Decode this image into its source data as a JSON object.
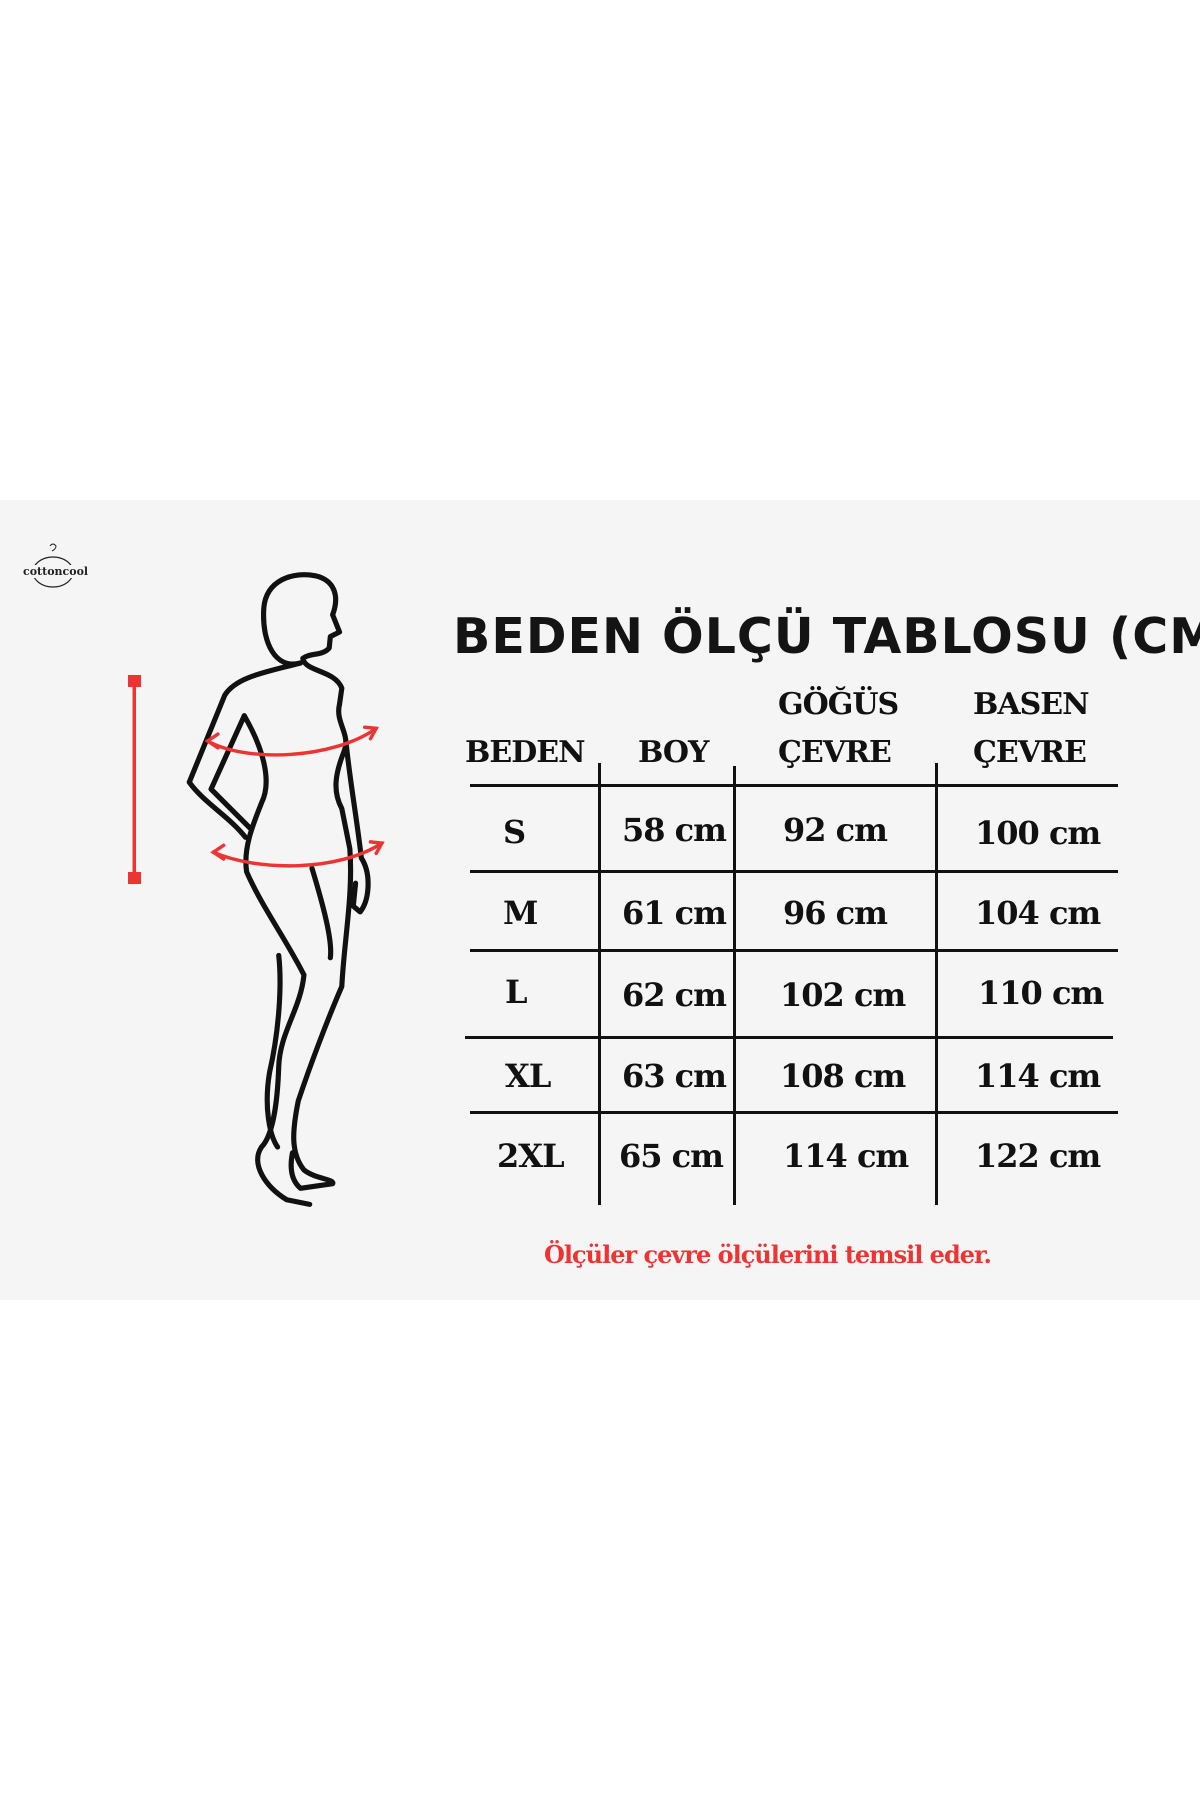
{
  "brand": {
    "logo_text": "cottoncool"
  },
  "title": "BEDEN ÖLÇÜ TABLOSU (CM)",
  "table": {
    "headers": {
      "size": "BEDEN",
      "length": "BOY",
      "chest_top": "GÖĞÜS",
      "chest_bottom": "ÇEVRE",
      "hip_top": "BASEN",
      "hip_bottom": "ÇEVRE"
    },
    "rows": [
      {
        "size": "S",
        "length": "58 cm",
        "chest": "92 cm",
        "hip": "100 cm"
      },
      {
        "size": "M",
        "length": "61 cm",
        "chest": "96 cm",
        "hip": "104 cm"
      },
      {
        "size": "L",
        "length": "62 cm",
        "chest": "102 cm",
        "hip": "110 cm"
      },
      {
        "size": "XL",
        "length": "63 cm",
        "chest": "108 cm",
        "hip": "114 cm"
      },
      {
        "size": "2XL",
        "length": "65 cm",
        "chest": "114 cm",
        "hip": "122 cm"
      }
    ]
  },
  "note": "Ölçüler çevre ölçülerini temsil eder.",
  "colors": {
    "accent_red": "#ee3333",
    "text": "#111111",
    "panel": "#f5f5f5"
  },
  "icons": [
    "hanger-logo-icon",
    "length-measure-icon",
    "body-silhouette-icon",
    "circumference-arrow-icon"
  ]
}
